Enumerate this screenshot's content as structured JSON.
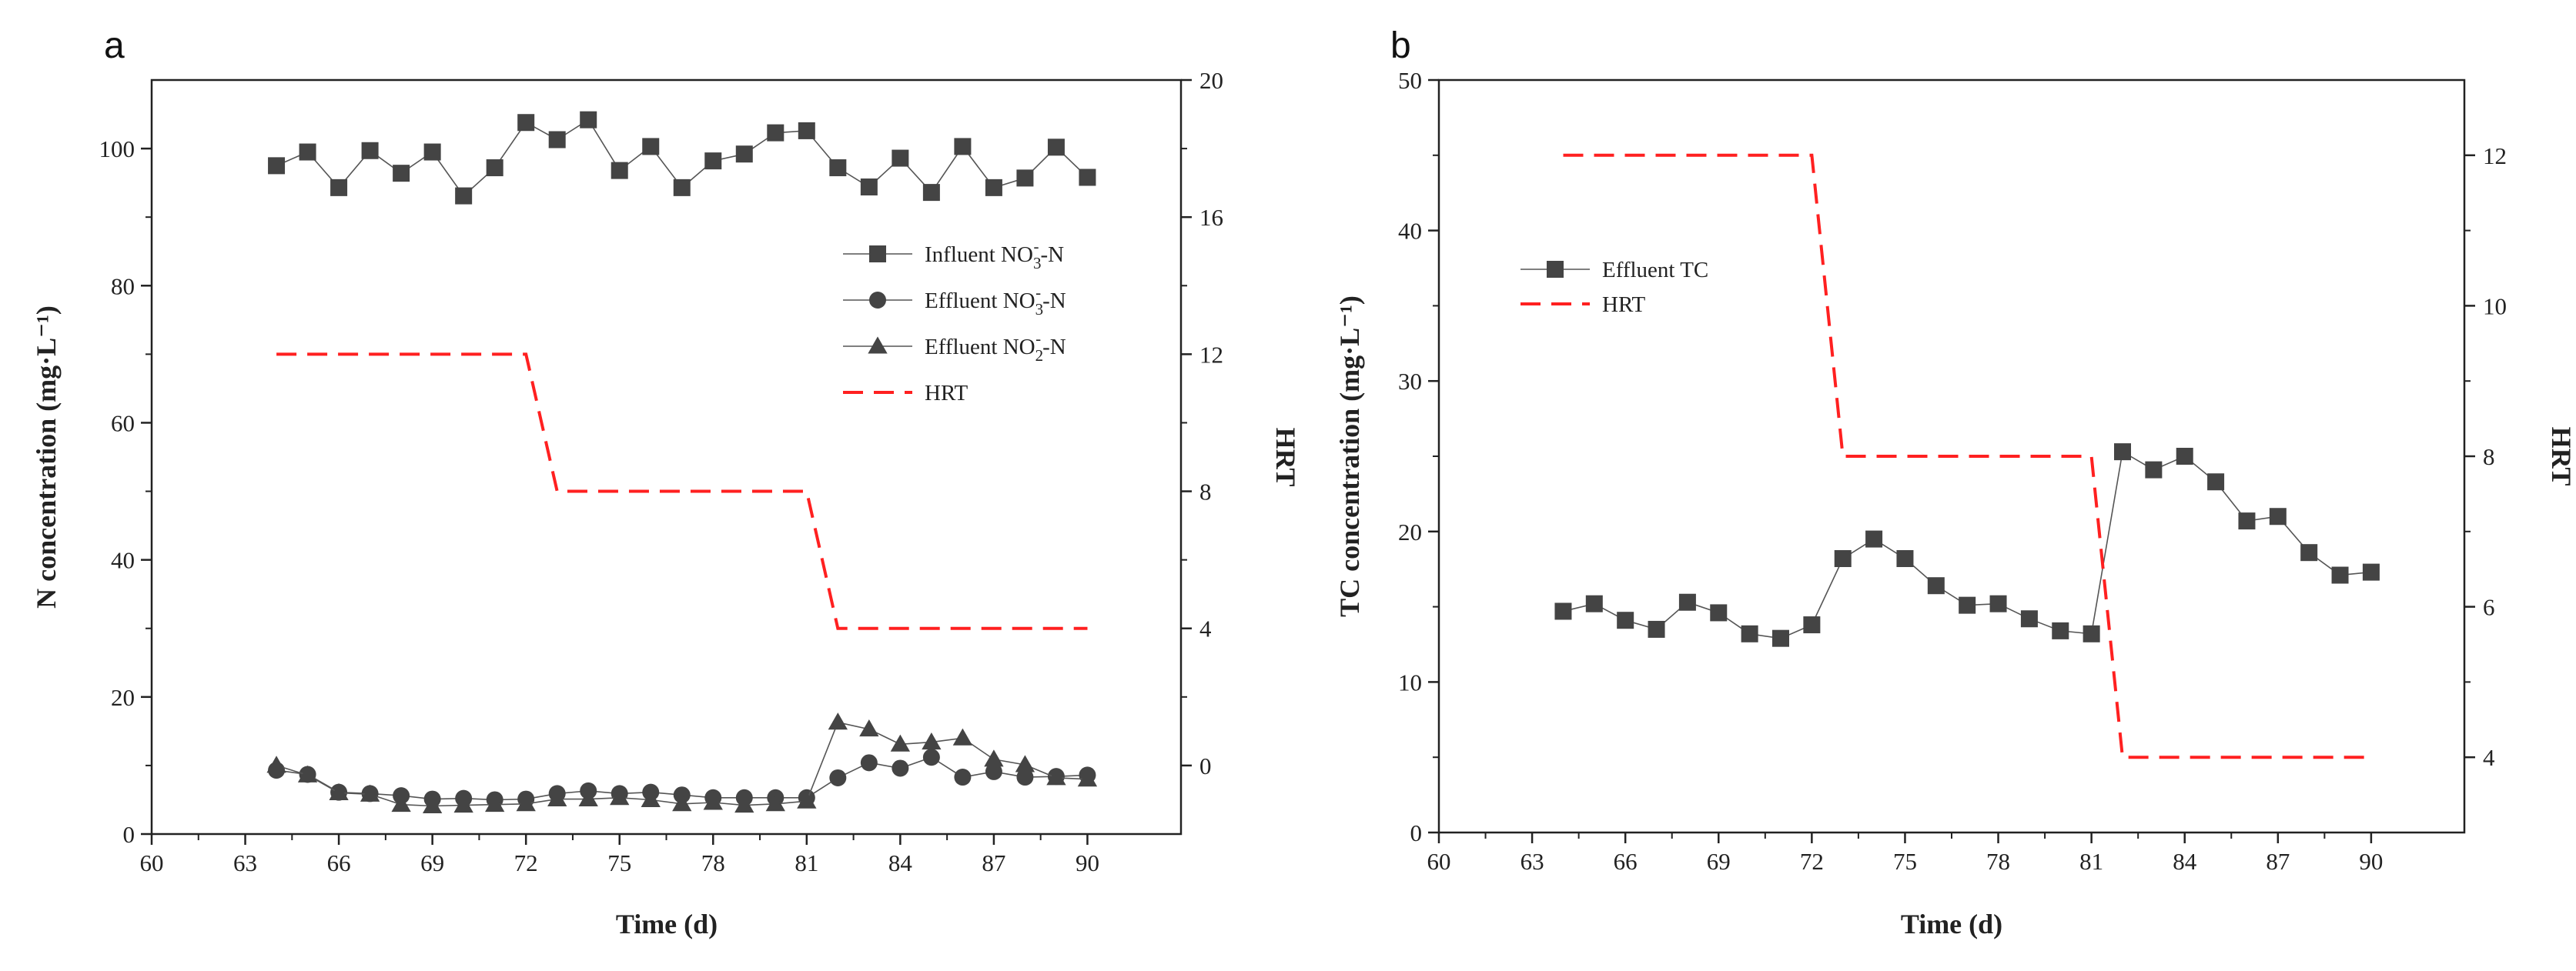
{
  "chart_data": [
    {
      "panel": "a",
      "type": "line",
      "xlabel": "Time (d)",
      "ylabel_left": "N concentration (mg·L⁻¹)",
      "ylabel_right": "HRT",
      "xlim": [
        60,
        93
      ],
      "xticks": [
        "60",
        "63",
        "66",
        "69",
        "72",
        "75",
        "78",
        "81",
        "84",
        "87",
        "90"
      ],
      "ylim_left": [
        0,
        110
      ],
      "yticks_left": [
        "0",
        "20",
        "40",
        "60",
        "80",
        "100"
      ],
      "ylim_right": [
        -2,
        20
      ],
      "yticks_right": [
        "0",
        "4",
        "8",
        "12",
        "16",
        "20"
      ],
      "legend_position": "right-middle",
      "series": [
        {
          "name": "Influent NO3⁻-N",
          "legend_main": "Influent NO",
          "legend_sub": "3",
          "legend_sup": "-",
          "legend_tail": "-N",
          "marker": "square",
          "axis": "left",
          "x": [
            64,
            65,
            66,
            67,
            68,
            69,
            70,
            71,
            72,
            73,
            74,
            75,
            76,
            77,
            78,
            79,
            80,
            81,
            82,
            83,
            84,
            85,
            86,
            87,
            88,
            89,
            90
          ],
          "values": [
            97.5,
            99.5,
            94.3,
            99.7,
            96.4,
            99.5,
            93.1,
            97.2,
            103.8,
            101.3,
            104.2,
            96.8,
            100.3,
            94.3,
            98.2,
            99.2,
            102.3,
            102.6,
            97.2,
            94.4,
            98.6,
            93.6,
            100.3,
            94.3,
            95.7,
            100.2,
            95.8
          ]
        },
        {
          "name": "Effluent NO3⁻-N",
          "legend_main": "Effluent NO",
          "legend_sub": "3",
          "legend_sup": "-",
          "legend_tail": "-N",
          "marker": "circle",
          "axis": "left",
          "x": [
            64,
            65,
            66,
            67,
            68,
            69,
            70,
            71,
            72,
            73,
            74,
            75,
            76,
            77,
            78,
            79,
            80,
            81,
            82,
            83,
            84,
            85,
            86,
            87,
            88,
            89,
            90
          ],
          "values": [
            9.3,
            8.7,
            6.1,
            5.9,
            5.6,
            5.1,
            5.2,
            5.0,
            5.1,
            5.9,
            6.3,
            5.9,
            6.1,
            5.7,
            5.3,
            5.3,
            5.3,
            5.3,
            8.2,
            10.4,
            9.6,
            11.2,
            8.3,
            9.1,
            8.3,
            8.4,
            8.6
          ]
        },
        {
          "name": "Effluent NO2⁻-N",
          "legend_main": "Effluent NO",
          "legend_sub": "2",
          "legend_sup": "-",
          "legend_tail": "-N",
          "marker": "triangle",
          "axis": "left",
          "x": [
            64,
            65,
            66,
            67,
            68,
            69,
            70,
            71,
            72,
            73,
            74,
            75,
            76,
            77,
            78,
            79,
            80,
            81,
            82,
            83,
            84,
            85,
            86,
            87,
            88,
            89,
            90
          ],
          "values": [
            10.0,
            8.6,
            6.0,
            5.8,
            4.3,
            4.1,
            4.2,
            4.3,
            4.4,
            5.1,
            5.1,
            5.3,
            5.0,
            4.4,
            4.6,
            4.2,
            4.4,
            4.8,
            16.3,
            15.3,
            13.1,
            13.4,
            14.0,
            10.9,
            10.1,
            8.2,
            8.0
          ]
        },
        {
          "name": "HRT",
          "legend_main": "HRT",
          "legend_sub": "",
          "legend_sup": "",
          "legend_tail": "",
          "marker": "none",
          "axis": "right",
          "style": "dashed",
          "color": "#ff2020",
          "x": [
            64,
            72,
            73,
            81,
            82,
            90
          ],
          "values": [
            12,
            12,
            8,
            8,
            4,
            4
          ]
        }
      ]
    },
    {
      "panel": "b",
      "type": "line",
      "xlabel": "Time (d)",
      "ylabel_left": "TC concentration (mg·L⁻¹)",
      "ylabel_right": "HRT",
      "xlim": [
        60,
        93
      ],
      "xticks": [
        "60",
        "63",
        "66",
        "69",
        "72",
        "75",
        "78",
        "81",
        "84",
        "87",
        "90"
      ],
      "ylim_left": [
        0,
        50
      ],
      "yticks_left": [
        "0",
        "10",
        "20",
        "30",
        "40",
        "50"
      ],
      "ylim_right": [
        3,
        13
      ],
      "yticks_right": [
        "4",
        "6",
        "8",
        "10",
        "12"
      ],
      "legend_position": "top-left",
      "series": [
        {
          "name": "Effluent TC",
          "legend_main": "Effluent TC",
          "legend_sub": "",
          "legend_sup": "",
          "legend_tail": "",
          "marker": "square",
          "axis": "left",
          "x": [
            64,
            65,
            66,
            67,
            68,
            69,
            70,
            71,
            72,
            73,
            74,
            75,
            76,
            77,
            78,
            79,
            80,
            81,
            82,
            83,
            84,
            85,
            86,
            87,
            88,
            89,
            90
          ],
          "values": [
            14.7,
            15.2,
            14.1,
            13.5,
            15.3,
            14.6,
            13.2,
            12.9,
            13.8,
            18.2,
            19.5,
            18.2,
            16.4,
            15.1,
            15.2,
            14.2,
            13.4,
            13.2,
            25.3,
            24.1,
            25.0,
            23.3,
            20.7,
            21.0,
            18.6,
            17.1,
            17.3
          ]
        },
        {
          "name": "HRT",
          "legend_main": "HRT",
          "legend_sub": "",
          "legend_sup": "",
          "legend_tail": "",
          "marker": "none",
          "axis": "right",
          "style": "dashed",
          "color": "#ff2020",
          "x": [
            64,
            72,
            73,
            81,
            82,
            90
          ],
          "values": [
            12,
            12,
            8,
            8,
            4,
            4
          ]
        }
      ]
    }
  ]
}
